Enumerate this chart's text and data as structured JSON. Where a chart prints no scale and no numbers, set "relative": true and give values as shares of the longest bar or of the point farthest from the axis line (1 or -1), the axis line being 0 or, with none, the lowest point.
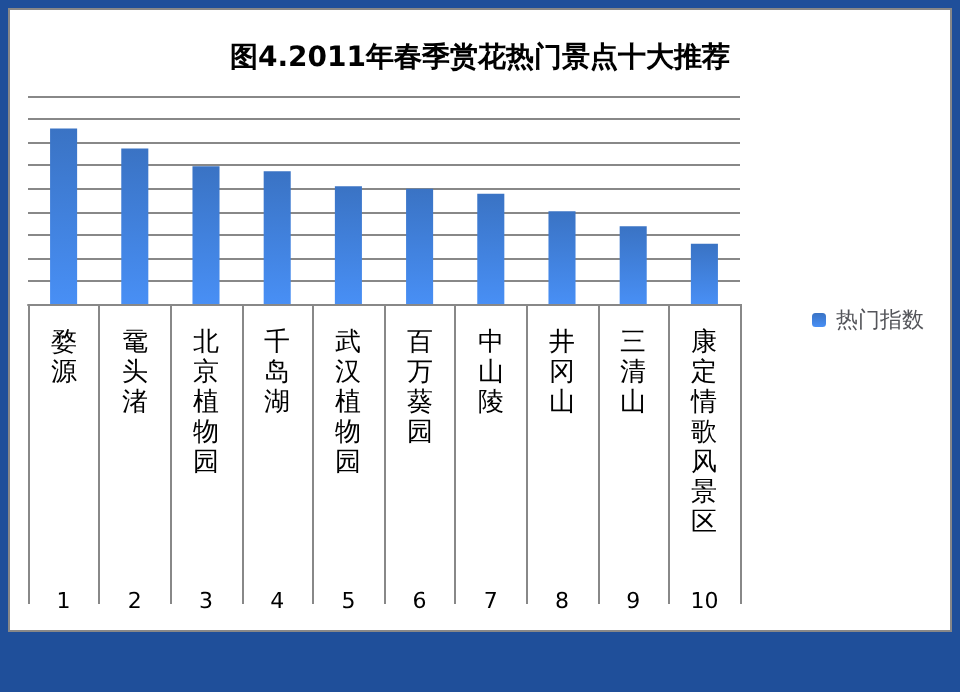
{
  "chart_data": {
    "type": "bar",
    "title": "图4.2011年春季赏花热门景点十大推荐",
    "categories": [
      "婺源",
      "鼋头渚",
      "北京植物园",
      "千岛湖",
      "武汉植物园",
      "百万葵园",
      "中山陵",
      "井冈山",
      "三清山",
      "康定情歌风景区"
    ],
    "series": [
      {
        "name": "热门指数",
        "color": "#3a73c4",
        "values": [
          1,
          0.886,
          0.786,
          0.757,
          0.671,
          0.657,
          0.629,
          0.529,
          0.443,
          0.343
        ]
      }
    ],
    "annotations": [
      "1",
      "2",
      "3",
      "4",
      "5",
      "6",
      "7",
      "8",
      "9",
      "10"
    ],
    "relative": true,
    "grid": "y",
    "legend": "right"
  }
}
